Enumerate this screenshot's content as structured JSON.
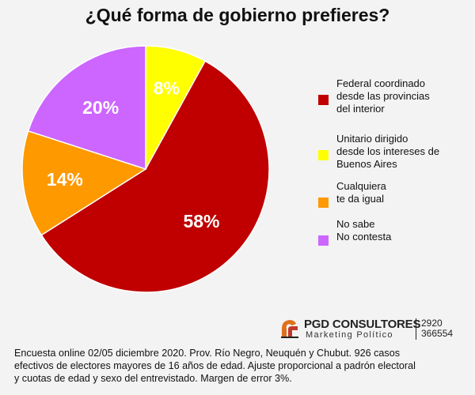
{
  "chart_data": {
    "type": "pie",
    "title": "¿Qué forma de gobierno prefieres?",
    "slices": [
      {
        "label_lines": [
          "Federal coordinado",
          "desde las provincias",
          "del interior"
        ],
        "value": 58,
        "value_label": "58%",
        "color": "#c00000"
      },
      {
        "label_lines": [
          "Unitario dirigido",
          "desde los intereses de",
          "Buenos Aires"
        ],
        "value": 8,
        "value_label": "8%",
        "color": "#ffff00"
      },
      {
        "label_lines": [
          "Cualquiera",
          "te da igual"
        ],
        "value": 14,
        "value_label": "14%",
        "color": "#ff9900"
      },
      {
        "label_lines": [
          "No sabe",
          "No contesta"
        ],
        "value": 20,
        "value_label": "20%",
        "color": "#cc66ff"
      }
    ],
    "legend_position": "right"
  },
  "branding": {
    "name": "PGD CONSULTORES",
    "subtitle": "Marketing Político",
    "phone_lines": [
      "2920",
      "366554"
    ]
  },
  "footnote_lines": [
    "Encuesta online 02/05 diciembre 2020. Prov. Río Negro, Neuquén y Chubut. 926 casos",
    "efectivos de electores mayores de 16 años de edad. Ajuste proporcional a padrón electoral",
    "y cuotas de edad y sexo del entrevistado. Margen de error 3%."
  ]
}
